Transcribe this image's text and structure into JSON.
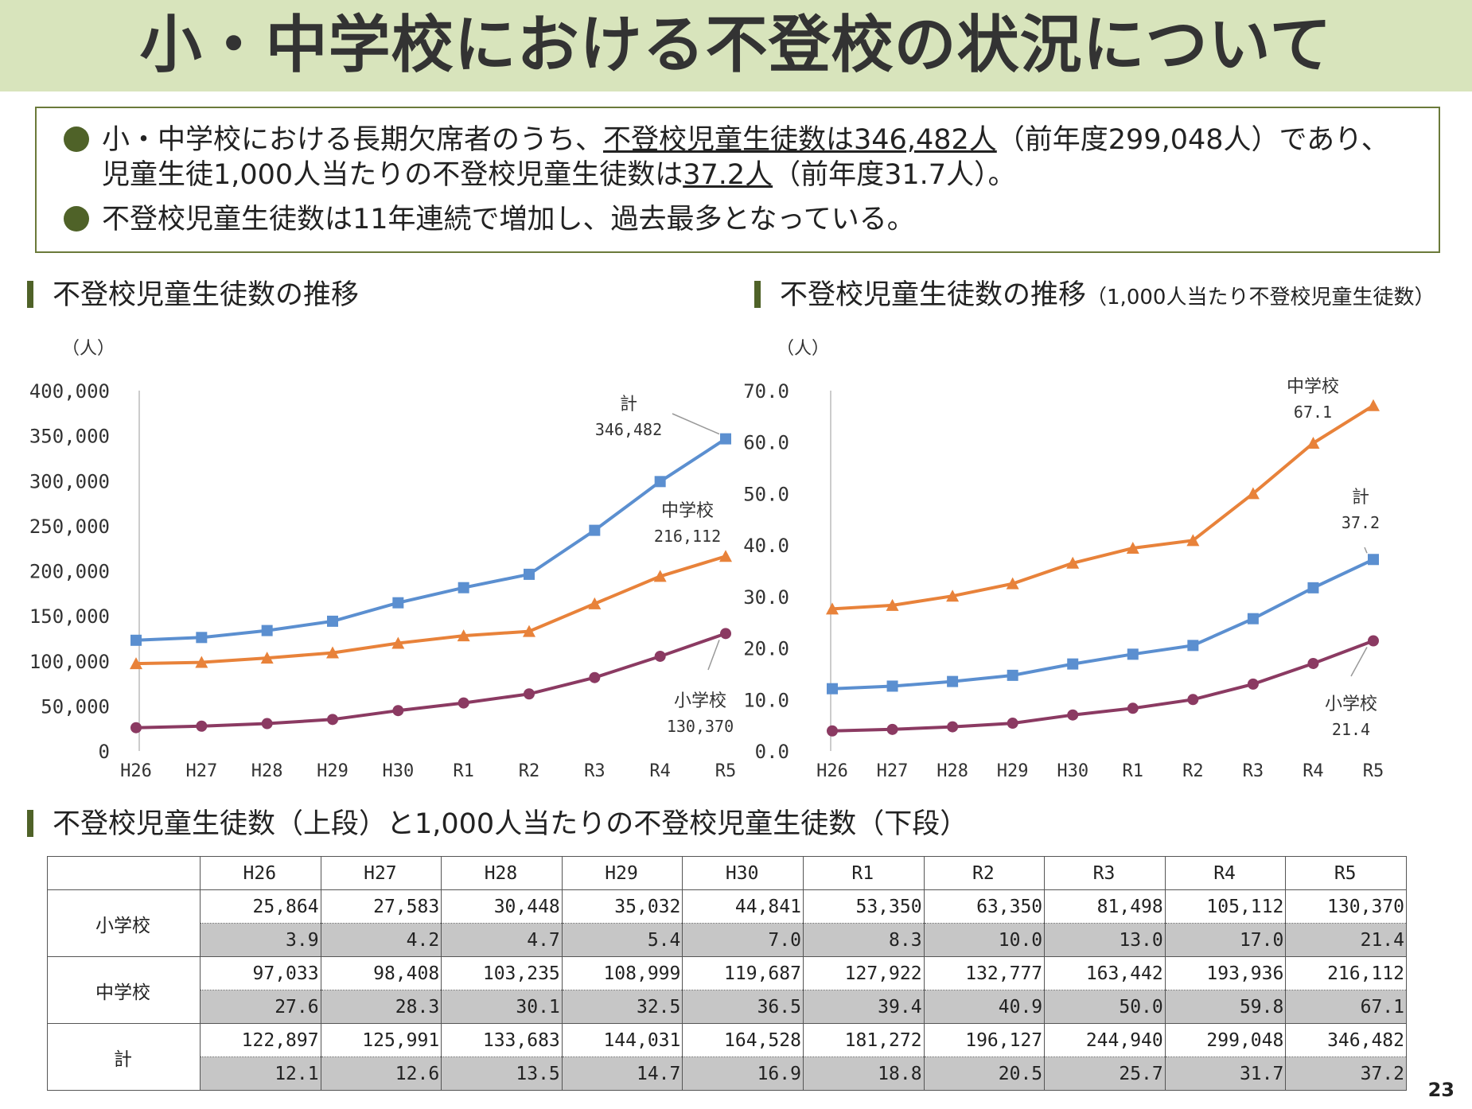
{
  "title": "小・中学校における不登校の状況について",
  "summary": {
    "b1_pre": "小・中学校における長期欠席者のうち、",
    "b1_u1": "不登校児童生徒数は346,482人",
    "b1_mid": "（前年度299,048人）であり、",
    "b1_l2_pre": "児童生徒1,000人当たりの不登校児童生徒数は",
    "b1_u2": "37.2人",
    "b1_l2_post": "（前年度31.7人）。",
    "b2": "不登校児童生徒数は11年連続で増加し、過去最多となっている。"
  },
  "chart_titles": {
    "left": "不登校児童生徒数の推移",
    "right": "不登校児童生徒数の推移",
    "right_sub": "（1,000人当たり不登校児童生徒数）"
  },
  "table_title": "不登校児童生徒数（上段）と1,000人当たりの不登校児童生徒数（下段）",
  "page_number": "23",
  "colors": {
    "elementary": "#8b3a62",
    "junior_high": "#e8823a",
    "total": "#5b8fd0",
    "accent": "#4f6228"
  },
  "chart_data": [
    {
      "type": "line",
      "unit": "（人）",
      "categories": [
        "H26",
        "H27",
        "H28",
        "H29",
        "H30",
        "R1",
        "R2",
        "R3",
        "R4",
        "R5"
      ],
      "ylim": [
        0,
        400000
      ],
      "yticks": [
        "0",
        "50,000",
        "100,000",
        "150,000",
        "200,000",
        "250,000",
        "300,000",
        "350,000",
        "400,000"
      ],
      "series": [
        {
          "name": "計",
          "marker": "square",
          "values": [
            122897,
            125991,
            133683,
            144031,
            164528,
            181272,
            196127,
            244940,
            299048,
            346482
          ]
        },
        {
          "name": "中学校",
          "marker": "triangle",
          "values": [
            97033,
            98408,
            103235,
            108999,
            119687,
            127922,
            132777,
            163442,
            193936,
            216112
          ]
        },
        {
          "name": "小学校",
          "marker": "circle",
          "values": [
            25864,
            27583,
            30448,
            35032,
            44841,
            53350,
            63350,
            81498,
            105112,
            130370
          ]
        }
      ],
      "annotations": [
        {
          "series": "計",
          "label": "計",
          "value": "346,482"
        },
        {
          "series": "中学校",
          "label": "中学校",
          "value": "216,112"
        },
        {
          "series": "小学校",
          "label": "小学校",
          "value": "130,370"
        }
      ]
    },
    {
      "type": "line",
      "unit": "（人）",
      "categories": [
        "H26",
        "H27",
        "H28",
        "H29",
        "H30",
        "R1",
        "R2",
        "R3",
        "R4",
        "R5"
      ],
      "ylim": [
        0,
        70
      ],
      "yticks": [
        "0.0",
        "10.0",
        "20.0",
        "30.0",
        "40.0",
        "50.0",
        "60.0",
        "70.0"
      ],
      "series": [
        {
          "name": "中学校",
          "marker": "triangle",
          "values": [
            27.6,
            28.3,
            30.1,
            32.5,
            36.5,
            39.4,
            40.9,
            50.0,
            59.8,
            67.1
          ]
        },
        {
          "name": "計",
          "marker": "square",
          "values": [
            12.1,
            12.6,
            13.5,
            14.7,
            16.9,
            18.8,
            20.5,
            25.7,
            31.7,
            37.2
          ]
        },
        {
          "name": "小学校",
          "marker": "circle",
          "values": [
            3.9,
            4.2,
            4.7,
            5.4,
            7.0,
            8.3,
            10.0,
            13.0,
            17.0,
            21.4
          ]
        }
      ],
      "annotations": [
        {
          "series": "中学校",
          "label": "中学校",
          "value": "67.1"
        },
        {
          "series": "計",
          "label": "計",
          "value": "37.2"
        },
        {
          "series": "小学校",
          "label": "小学校",
          "value": "21.4"
        }
      ]
    },
    {
      "type": "table",
      "columns": [
        "H26",
        "H27",
        "H28",
        "H29",
        "H30",
        "R1",
        "R2",
        "R3",
        "R4",
        "R5"
      ],
      "rows": [
        {
          "label": "小学校",
          "counts": [
            "25,864",
            "27,583",
            "30,448",
            "35,032",
            "44,841",
            "53,350",
            "63,350",
            "81,498",
            "105,112",
            "130,370"
          ],
          "rates": [
            "3.9",
            "4.2",
            "4.7",
            "5.4",
            "7.0",
            "8.3",
            "10.0",
            "13.0",
            "17.0",
            "21.4"
          ]
        },
        {
          "label": "中学校",
          "counts": [
            "97,033",
            "98,408",
            "103,235",
            "108,999",
            "119,687",
            "127,922",
            "132,777",
            "163,442",
            "193,936",
            "216,112"
          ],
          "rates": [
            "27.6",
            "28.3",
            "30.1",
            "32.5",
            "36.5",
            "39.4",
            "40.9",
            "50.0",
            "59.8",
            "67.1"
          ]
        },
        {
          "label": "計",
          "counts": [
            "122,897",
            "125,991",
            "133,683",
            "144,031",
            "164,528",
            "181,272",
            "196,127",
            "244,940",
            "299,048",
            "346,482"
          ],
          "rates": [
            "12.1",
            "12.6",
            "13.5",
            "14.7",
            "16.9",
            "18.8",
            "20.5",
            "25.7",
            "31.7",
            "37.2"
          ]
        }
      ]
    }
  ]
}
